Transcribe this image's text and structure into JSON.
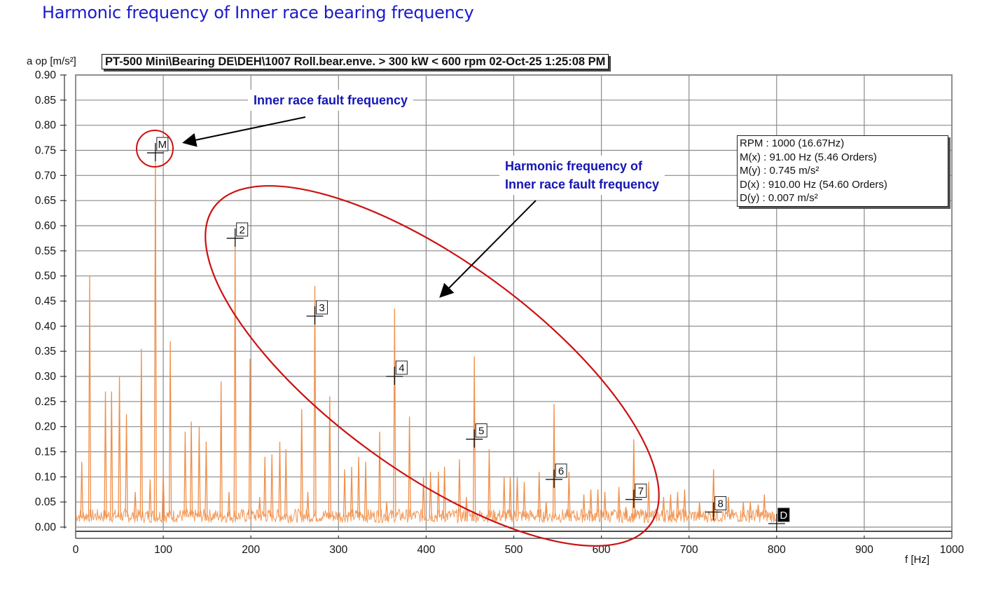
{
  "slide_title": "Harmonic frequency of Inner race bearing frequency",
  "chart_header": "PT-500 Mini\\Bearing DE\\DEH\\1007 Roll.bear.enve. > 300 kW < 600 rpm 02-Oct-25 1:25:08 PM",
  "annotations": {
    "fault_label": "Inner race fault frequency",
    "harmonic_label_line1": "Harmonic frequency of",
    "harmonic_label_line2": "Inner race fault frequency"
  },
  "colors": {
    "spectrum": "#f0904a",
    "annotation_text": "#1515b5",
    "highlight": "#cc1111",
    "grid": "#8a8a8a"
  },
  "info_box": {
    "rpm": "RPM : 1000 (16.67Hz)",
    "mx": "M(x) : 91.00 Hz (5.46 Orders)",
    "my": "M(y) : 0.745 m/s²",
    "dx": "D(x) : 910.00 Hz (54.60 Orders)",
    "dy": "D(y) : 0.007 m/s²"
  },
  "chart_data": {
    "type": "line",
    "title": "PT-500 Mini\\Bearing DE\\DEH\\1007 Roll.bear.enve. > 300 kW < 600 rpm 02-Oct-25 1:25:08 PM",
    "xlabel": "f [Hz]",
    "ylabel": "a op [m/s²]",
    "xlim": [
      0,
      1000
    ],
    "ylim": [
      0,
      0.9
    ],
    "x_ticks": [
      "0",
      "100",
      "200",
      "300",
      "400",
      "500",
      "600",
      "700",
      "800",
      "900",
      "1000"
    ],
    "y_ticks": [
      "0.00",
      "0.05",
      "0.10",
      "0.15",
      "0.20",
      "0.25",
      "0.30",
      "0.35",
      "0.40",
      "0.45",
      "0.50",
      "0.55",
      "0.60",
      "0.65",
      "0.70",
      "0.75",
      "0.80",
      "0.85",
      "0.90"
    ],
    "grid": true,
    "spectrum_extent_hz": 800,
    "noise_floor": 0.025,
    "peaks": [
      {
        "x": 7,
        "y": 0.13
      },
      {
        "x": 16,
        "y": 0.5
      },
      {
        "x": 34,
        "y": 0.27
      },
      {
        "x": 41,
        "y": 0.27
      },
      {
        "x": 50,
        "y": 0.3
      },
      {
        "x": 58,
        "y": 0.225
      },
      {
        "x": 68,
        "y": 0.07
      },
      {
        "x": 75,
        "y": 0.355
      },
      {
        "x": 85,
        "y": 0.095
      },
      {
        "x": 91,
        "y": 0.745
      },
      {
        "x": 100,
        "y": 0.11
      },
      {
        "x": 108,
        "y": 0.37
      },
      {
        "x": 125,
        "y": 0.19
      },
      {
        "x": 132,
        "y": 0.21
      },
      {
        "x": 141,
        "y": 0.2
      },
      {
        "x": 149,
        "y": 0.17
      },
      {
        "x": 166,
        "y": 0.29
      },
      {
        "x": 175,
        "y": 0.07
      },
      {
        "x": 182,
        "y": 0.575
      },
      {
        "x": 199,
        "y": 0.335
      },
      {
        "x": 210,
        "y": 0.06
      },
      {
        "x": 216,
        "y": 0.14
      },
      {
        "x": 224,
        "y": 0.145
      },
      {
        "x": 233,
        "y": 0.17
      },
      {
        "x": 240,
        "y": 0.155
      },
      {
        "x": 258,
        "y": 0.235
      },
      {
        "x": 265,
        "y": 0.07
      },
      {
        "x": 273,
        "y": 0.48
      },
      {
        "x": 290,
        "y": 0.26
      },
      {
        "x": 307,
        "y": 0.115
      },
      {
        "x": 315,
        "y": 0.12
      },
      {
        "x": 323,
        "y": 0.14
      },
      {
        "x": 331,
        "y": 0.13
      },
      {
        "x": 347,
        "y": 0.19
      },
      {
        "x": 355,
        "y": 0.05
      },
      {
        "x": 364,
        "y": 0.435
      },
      {
        "x": 381,
        "y": 0.22
      },
      {
        "x": 397,
        "y": 0.1
      },
      {
        "x": 405,
        "y": 0.11
      },
      {
        "x": 414,
        "y": 0.11
      },
      {
        "x": 421,
        "y": 0.12
      },
      {
        "x": 438,
        "y": 0.135
      },
      {
        "x": 446,
        "y": 0.06
      },
      {
        "x": 455,
        "y": 0.34
      },
      {
        "x": 472,
        "y": 0.155
      },
      {
        "x": 489,
        "y": 0.1
      },
      {
        "x": 496,
        "y": 0.1
      },
      {
        "x": 504,
        "y": 0.1
      },
      {
        "x": 512,
        "y": 0.09
      },
      {
        "x": 529,
        "y": 0.11
      },
      {
        "x": 537,
        "y": 0.05
      },
      {
        "x": 546,
        "y": 0.245
      },
      {
        "x": 563,
        "y": 0.11
      },
      {
        "x": 580,
        "y": 0.065
      },
      {
        "x": 588,
        "y": 0.075
      },
      {
        "x": 596,
        "y": 0.075
      },
      {
        "x": 604,
        "y": 0.07
      },
      {
        "x": 620,
        "y": 0.08
      },
      {
        "x": 628,
        "y": 0.04
      },
      {
        "x": 637,
        "y": 0.175
      },
      {
        "x": 654,
        "y": 0.09
      },
      {
        "x": 671,
        "y": 0.06
      },
      {
        "x": 679,
        "y": 0.065
      },
      {
        "x": 687,
        "y": 0.07
      },
      {
        "x": 695,
        "y": 0.075
      },
      {
        "x": 712,
        "y": 0.05
      },
      {
        "x": 728,
        "y": 0.115
      },
      {
        "x": 745,
        "y": 0.06
      },
      {
        "x": 762,
        "y": 0.05
      },
      {
        "x": 770,
        "y": 0.05
      },
      {
        "x": 779,
        "y": 0.045
      },
      {
        "x": 786,
        "y": 0.065
      }
    ],
    "markers": [
      {
        "label": "M",
        "x": 91,
        "y": 0.745,
        "style": "outline"
      },
      {
        "label": "2",
        "x": 182,
        "y": 0.575,
        "style": "outline"
      },
      {
        "label": "3",
        "x": 273,
        "y": 0.42,
        "style": "outline"
      },
      {
        "label": "4",
        "x": 364,
        "y": 0.3,
        "style": "outline"
      },
      {
        "label": "5",
        "x": 455,
        "y": 0.175,
        "style": "outline"
      },
      {
        "label": "6",
        "x": 546,
        "y": 0.095,
        "style": "outline"
      },
      {
        "label": "7",
        "x": 637,
        "y": 0.055,
        "style": "outline"
      },
      {
        "label": "8",
        "x": 728,
        "y": 0.03,
        "style": "outline"
      },
      {
        "label": "D",
        "x": 800,
        "y": 0.007,
        "style": "filled"
      }
    ]
  }
}
